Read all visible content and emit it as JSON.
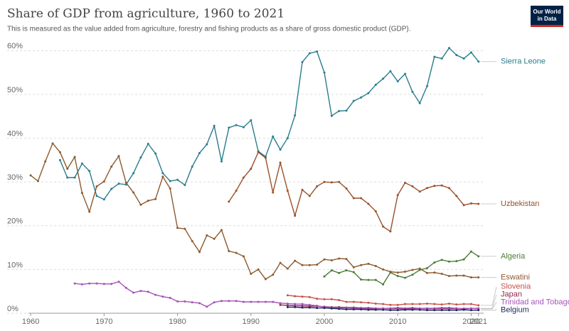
{
  "chart_data": {
    "type": "line",
    "title": "Share of GDP from agriculture, 1960 to 2021",
    "subtitle": "This is measured as the value added from agriculture, forestry and fishing products as a share of gross domestic product (GDP).",
    "logo_lines": [
      "Our World",
      "in Data"
    ],
    "x": [
      1960,
      1961,
      1962,
      1963,
      1964,
      1965,
      1966,
      1967,
      1968,
      1969,
      1970,
      1971,
      1972,
      1973,
      1974,
      1975,
      1976,
      1977,
      1978,
      1979,
      1980,
      1981,
      1982,
      1983,
      1984,
      1985,
      1986,
      1987,
      1988,
      1989,
      1990,
      1991,
      1992,
      1993,
      1994,
      1995,
      1996,
      1997,
      1998,
      1999,
      2000,
      2001,
      2002,
      2003,
      2004,
      2005,
      2006,
      2007,
      2008,
      2009,
      2010,
      2011,
      2012,
      2013,
      2014,
      2015,
      2016,
      2017,
      2018,
      2019,
      2020,
      2021
    ],
    "xlim": [
      1959.7,
      2021.7
    ],
    "xticks": [
      1960,
      1970,
      1980,
      1990,
      2000,
      2010,
      2020,
      2021
    ],
    "ylim": [
      0,
      62
    ],
    "yticks": [
      {
        "value": 0,
        "label": "0%"
      },
      {
        "value": 10,
        "label": "10%"
      },
      {
        "value": 20,
        "label": "20%"
      },
      {
        "value": 30,
        "label": "30%"
      },
      {
        "value": 40,
        "label": "40%"
      },
      {
        "value": 50,
        "label": "50%"
      },
      {
        "value": 60,
        "label": "60%"
      }
    ],
    "grid": true,
    "series": [
      {
        "name": "Sierra Leone",
        "color": "#2a7d8c",
        "values": [
          null,
          null,
          null,
          null,
          35,
          31,
          31,
          34.2,
          32.5,
          26.8,
          26,
          28.4,
          29.6,
          29.4,
          32,
          35.6,
          38.7,
          36.5,
          32,
          30.2,
          30.5,
          29.3,
          33.5,
          36.6,
          38.6,
          42.8,
          34.7,
          42.4,
          43,
          42.5,
          44.1,
          37,
          35.8,
          40.4,
          37.4,
          40,
          45.2,
          57.4,
          59.4,
          59.8,
          55,
          45.1,
          46.2,
          46.3,
          48.5,
          49.3,
          50.3,
          52.2,
          53.6,
          55.3,
          53,
          54.7,
          50.6,
          48,
          51.9,
          58.6,
          58.2,
          60.6,
          59,
          58.2,
          59.6,
          57.5
        ]
      },
      {
        "name": "Uzbekistan",
        "color": "#9a5129",
        "values": [
          null,
          null,
          null,
          null,
          null,
          null,
          null,
          null,
          null,
          null,
          null,
          null,
          null,
          null,
          null,
          null,
          null,
          null,
          null,
          null,
          null,
          null,
          null,
          null,
          null,
          null,
          null,
          25.5,
          28,
          31,
          33,
          36.8,
          35.5,
          27.6,
          34.4,
          28,
          22.3,
          28.2,
          26.8,
          29,
          30,
          29.9,
          30,
          28.5,
          26.3,
          26.3,
          25,
          23.3,
          19.8,
          18.7,
          27,
          29.8,
          29,
          27.8,
          28.6,
          29.1,
          29.2,
          28.6,
          26.8,
          24.7,
          25.1,
          25
        ]
      },
      {
        "name": "Algeria",
        "color": "#4c7a34",
        "values": [
          null,
          null,
          null,
          null,
          null,
          null,
          null,
          null,
          null,
          null,
          null,
          null,
          null,
          null,
          null,
          null,
          null,
          null,
          null,
          null,
          null,
          null,
          null,
          null,
          null,
          null,
          null,
          null,
          null,
          null,
          null,
          null,
          null,
          null,
          null,
          null,
          null,
          null,
          null,
          null,
          8.4,
          9.8,
          9.2,
          9.8,
          9.4,
          7.7,
          7.6,
          7.6,
          6.6,
          9.3,
          8.5,
          8.1,
          8.8,
          9.9,
          10.3,
          11.6,
          12.2,
          11.8,
          11.9,
          12.3,
          14.1,
          13
        ]
      },
      {
        "name": "Eswatini",
        "color": "#8c5a2e",
        "values": [
          31.5,
          30.2,
          34.7,
          38.8,
          36.8,
          33,
          35.7,
          27.5,
          23.2,
          29,
          30.1,
          33.5,
          35.9,
          29.8,
          27.6,
          24.8,
          25.7,
          26.1,
          31.2,
          28.5,
          19.5,
          19.3,
          16.5,
          14,
          17.8,
          17,
          19,
          14.2,
          13.8,
          13,
          9,
          10,
          7.8,
          8.8,
          11.5,
          10.2,
          12,
          11,
          11,
          11.1,
          12.3,
          12.1,
          12.5,
          12.4,
          10.5,
          11,
          11.3,
          10.8,
          10,
          9.5,
          9.3,
          9.5,
          9.9,
          10.2,
          9.2,
          9.3,
          9,
          8.5,
          8.6,
          8.6,
          8.2,
          8.2
        ]
      },
      {
        "name": "Slovenia",
        "color": "#c8504a",
        "values": [
          null,
          null,
          null,
          null,
          null,
          null,
          null,
          null,
          null,
          null,
          null,
          null,
          null,
          null,
          null,
          null,
          null,
          null,
          null,
          null,
          null,
          null,
          null,
          null,
          null,
          null,
          null,
          null,
          null,
          null,
          null,
          null,
          null,
          null,
          null,
          4.1,
          3.9,
          3.8,
          3.7,
          3.3,
          3.2,
          3.2,
          3.0,
          2.6,
          2.6,
          2.5,
          2.4,
          2.2,
          2.1,
          1.9,
          1.9,
          2.1,
          2.1,
          2.1,
          2.2,
          2.1,
          2.0,
          2.2,
          2.0,
          2.1,
          2.1,
          1.8
        ]
      },
      {
        "name": "Japan",
        "color": "#8b2a4a",
        "values": [
          null,
          null,
          null,
          null,
          null,
          null,
          null,
          null,
          null,
          null,
          null,
          null,
          null,
          null,
          null,
          null,
          null,
          null,
          null,
          null,
          null,
          null,
          null,
          null,
          null,
          null,
          null,
          null,
          null,
          null,
          null,
          null,
          null,
          null,
          1.9,
          1.8,
          1.7,
          1.7,
          1.6,
          1.6,
          1.5,
          1.4,
          1.4,
          1.3,
          1.3,
          1.2,
          1.2,
          1.1,
          1.1,
          1.1,
          1.2,
          1.1,
          1.2,
          1.1,
          1.1,
          1.1,
          1.2,
          1.2,
          1.1,
          1.0,
          1.1,
          1.1
        ]
      },
      {
        "name": "Trinidad and Tobago",
        "color": "#a652ba",
        "values": [
          null,
          null,
          null,
          null,
          null,
          null,
          6.8,
          6.6,
          6.8,
          6.8,
          6.7,
          6.7,
          7.2,
          5.8,
          4.7,
          5.1,
          4.9,
          4.2,
          3.8,
          3.5,
          2.7,
          2.7,
          2.5,
          2.3,
          1.5,
          2.5,
          2.8,
          2.8,
          2.8,
          2.6,
          2.6,
          2.6,
          2.6,
          2.6,
          2.3,
          2.2,
          2.1,
          2.1,
          1.9,
          1.7,
          1.4,
          1.3,
          1.2,
          1.2,
          1.1,
          1.1,
          1.0,
          1.0,
          1.1,
          1.0,
          1.0,
          1.0,
          1.0,
          1.1,
          1.0,
          1.0,
          1.0,
          1.0,
          1.0,
          1.1,
          1.1,
          1.0
        ]
      },
      {
        "name": "Belgium",
        "color": "#1a2a5c",
        "values": [
          null,
          null,
          null,
          null,
          null,
          null,
          null,
          null,
          null,
          null,
          null,
          null,
          null,
          null,
          null,
          null,
          null,
          null,
          null,
          null,
          null,
          null,
          null,
          null,
          null,
          null,
          null,
          null,
          null,
          null,
          null,
          null,
          null,
          null,
          null,
          1.4,
          1.4,
          1.3,
          1.3,
          1.2,
          1.2,
          1.1,
          1.0,
          0.9,
          0.9,
          0.9,
          0.8,
          0.8,
          0.8,
          0.7,
          0.7,
          0.8,
          0.8,
          0.8,
          0.7,
          0.7,
          0.7,
          0.7,
          0.7,
          0.8,
          0.7,
          0.7
        ]
      }
    ]
  }
}
